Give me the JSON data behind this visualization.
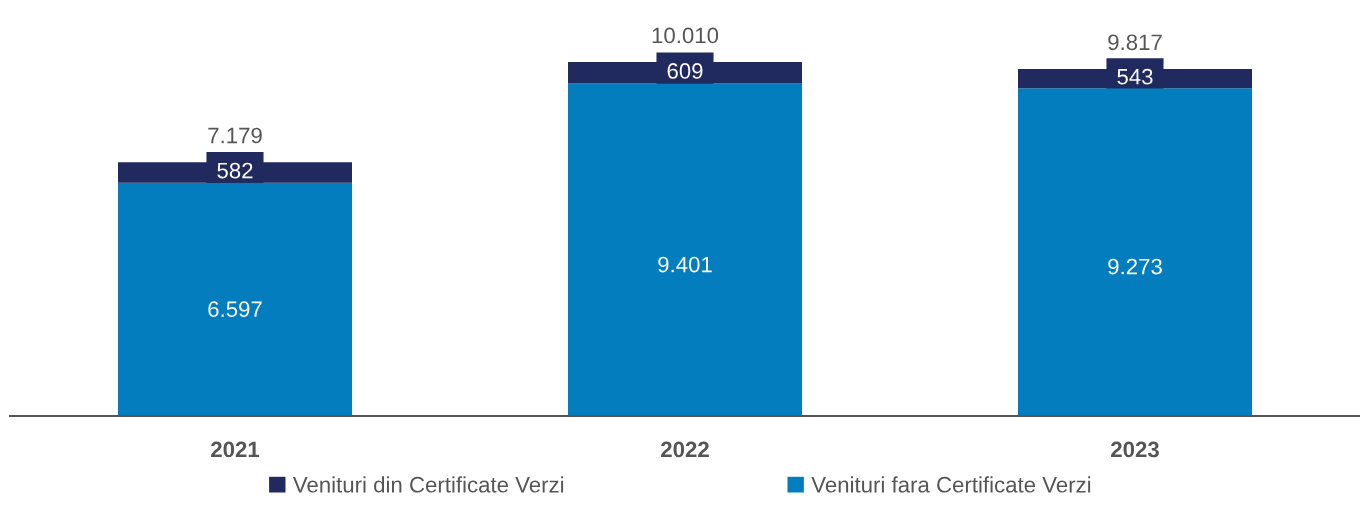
{
  "chart_data": {
    "type": "bar",
    "stacked": true,
    "categories": [
      "2021",
      "2022",
      "2023"
    ],
    "series": [
      {
        "name": "Venituri fara Certificate Verzi",
        "color": "#047dbf",
        "values": [
          6597,
          9401,
          9273
        ],
        "value_labels": [
          "6.597",
          "9.401",
          "9.273"
        ]
      },
      {
        "name": "Venituri din Certificate Verzi",
        "color": "#212a5e",
        "values": [
          582,
          609,
          543
        ],
        "value_labels": [
          "582",
          "609",
          "543"
        ]
      }
    ],
    "totals": [
      "7.179",
      "10.010",
      "9.817"
    ],
    "legend": "bottom",
    "grid": false
  }
}
